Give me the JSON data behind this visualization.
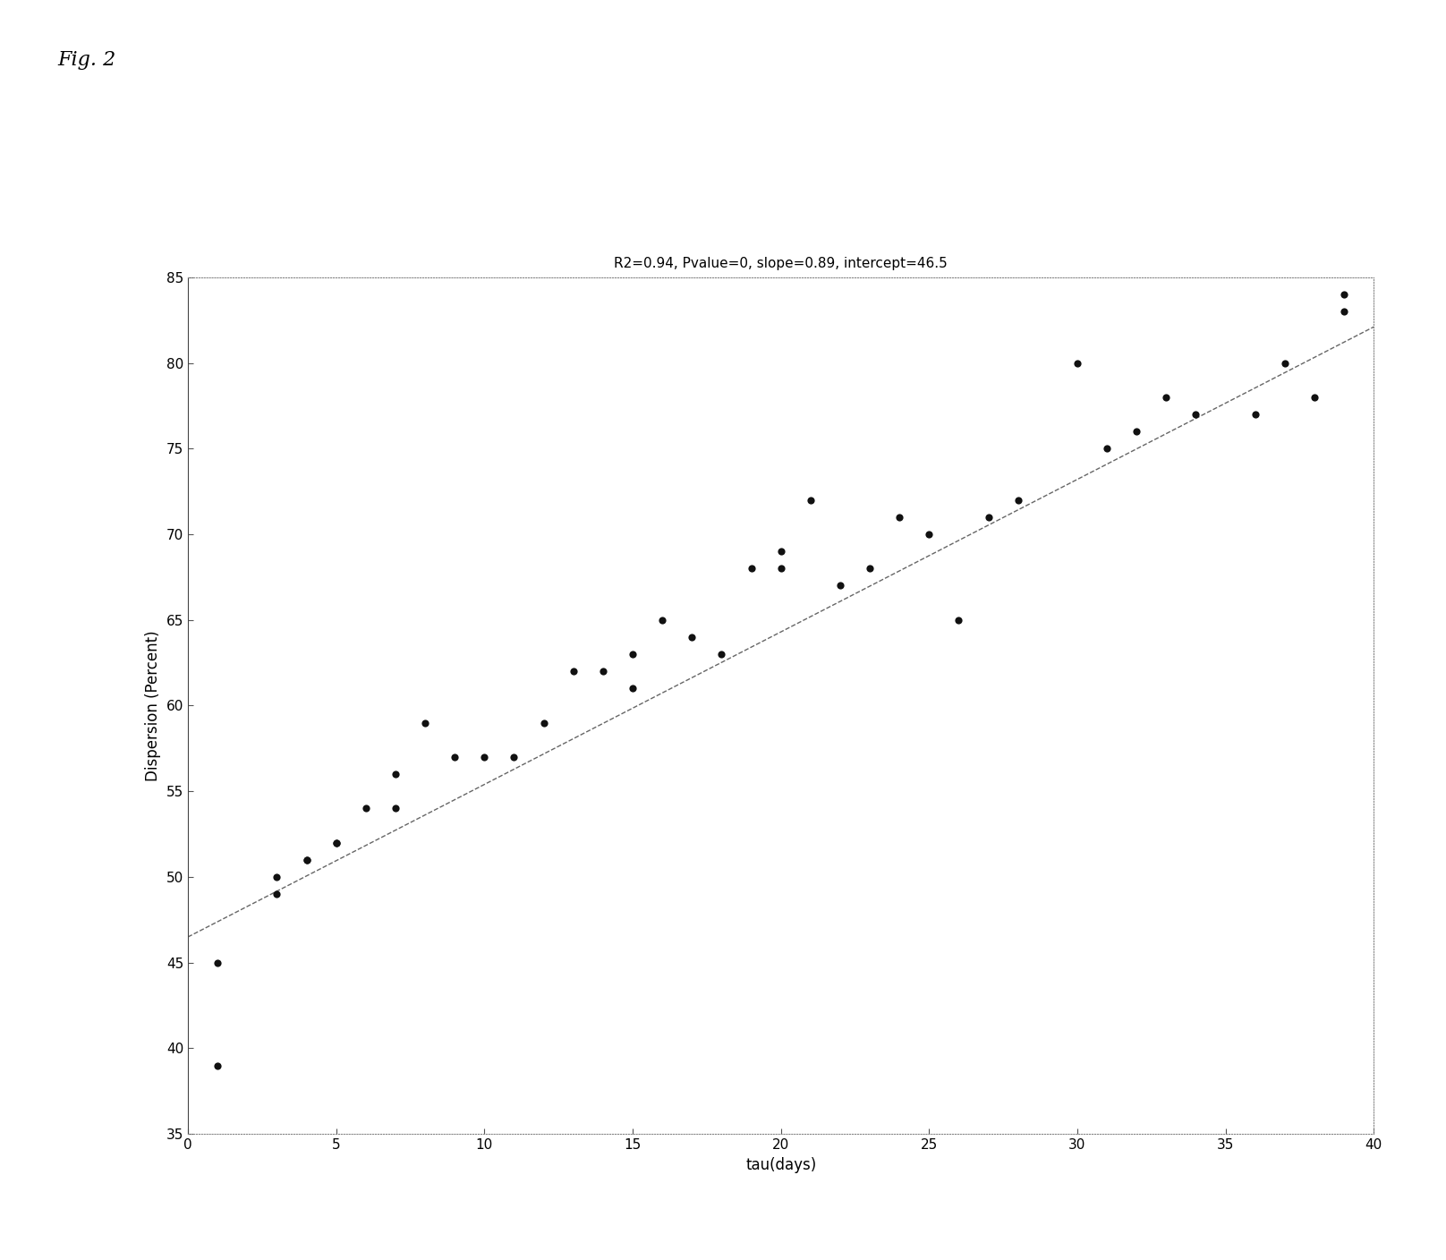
{
  "title": "R2=0.94, Pvalue=0, slope=0.89, intercept=46.5",
  "xlabel": "tau(days)",
  "ylabel": "Dispersion (Percent)",
  "fig_label": "Fig. 2",
  "xlim": [
    0,
    40
  ],
  "ylim": [
    35,
    85
  ],
  "xticks": [
    0,
    5,
    10,
    15,
    20,
    25,
    30,
    35,
    40
  ],
  "yticks": [
    35,
    40,
    45,
    50,
    55,
    60,
    65,
    70,
    75,
    80,
    85
  ],
  "slope": 0.89,
  "intercept": 46.5,
  "scatter_x": [
    1,
    1,
    3,
    3,
    4,
    4,
    5,
    5,
    6,
    7,
    7,
    8,
    9,
    10,
    11,
    12,
    13,
    14,
    15,
    15,
    16,
    17,
    18,
    19,
    20,
    20,
    21,
    22,
    23,
    24,
    25,
    26,
    27,
    28,
    30,
    31,
    32,
    33,
    34,
    36,
    37,
    38,
    39,
    39
  ],
  "scatter_y": [
    39,
    45,
    50,
    49,
    51,
    51,
    52,
    52,
    54,
    54,
    56,
    59,
    57,
    57,
    57,
    59,
    62,
    62,
    61,
    63,
    65,
    64,
    63,
    68,
    69,
    68,
    72,
    67,
    68,
    71,
    70,
    65,
    71,
    72,
    80,
    75,
    76,
    78,
    77,
    77,
    80,
    78,
    84,
    83
  ],
  "line_color": "#666666",
  "scatter_color": "#111111",
  "background_color": "#ffffff",
  "title_fontsize": 11,
  "label_fontsize": 12,
  "tick_fontsize": 11,
  "fig_label_fontsize": 16,
  "spine_color": "#888888",
  "left_spine_color": "#444444",
  "bottom_spine_color": "#888888"
}
